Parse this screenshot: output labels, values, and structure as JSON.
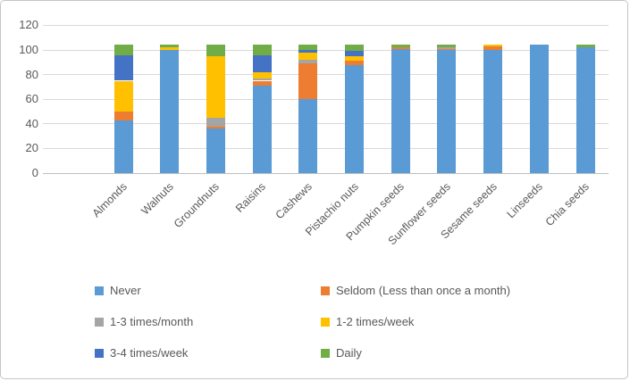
{
  "chart_data": {
    "type": "bar",
    "stacked": true,
    "title": "",
    "xlabel": "",
    "ylabel": "",
    "categories": [
      "Almonds",
      "Walnuts",
      "Groundnuts",
      "Raisins",
      "Cashews",
      "Pistachio nuts",
      "Pumpkin seeds",
      "Sunflower seeds",
      "Sesame seeds",
      "Linseeds",
      "Chia seeds"
    ],
    "series": [
      {
        "name": "Never",
        "color": "#5B9BD5",
        "values": [
          43,
          100,
          36,
          71,
          60,
          88,
          101,
          100,
          100,
          104,
          102
        ]
      },
      {
        "name": "Seldom (Less than once a month)",
        "color": "#ED7D31",
        "values": [
          7,
          0,
          2,
          4,
          29,
          3,
          1,
          1,
          3,
          0,
          0
        ]
      },
      {
        "name": "1-3 times/month",
        "color": "#A5A5A5",
        "values": [
          0,
          0,
          7,
          2,
          3,
          0,
          0,
          1,
          0,
          0,
          0
        ]
      },
      {
        "name": "1-2 times/week",
        "color": "#FFC000",
        "values": [
          25,
          2,
          50,
          5,
          6,
          4,
          0,
          0,
          1,
          0,
          0
        ]
      },
      {
        "name": "3-4 times/week",
        "color": "#4472C4",
        "values": [
          21,
          0,
          0,
          14,
          2,
          4,
          0,
          0,
          0,
          0,
          0
        ]
      },
      {
        "name": "Daily",
        "color": "#70AD47",
        "values": [
          8,
          2,
          9,
          8,
          4,
          5,
          2,
          2,
          0,
          0,
          2
        ]
      }
    ],
    "y_ticks": [
      0,
      20,
      40,
      60,
      80,
      100,
      120
    ],
    "ylim": [
      0,
      120
    ],
    "grid": true,
    "legend_position": "bottom",
    "legend_columns": 2,
    "gridline_color": "#d9d9d9",
    "axis_text_color": "#595959"
  }
}
